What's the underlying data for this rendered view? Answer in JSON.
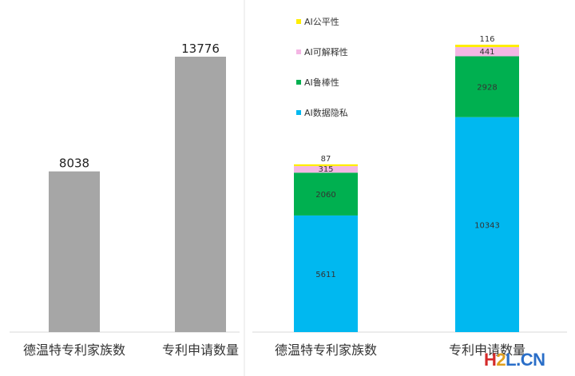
{
  "chart_data": [
    {
      "type": "bar",
      "categories": [
        "德温特专利家族数",
        "专利申请数量"
      ],
      "values": [
        8038,
        13776
      ],
      "color": "#a6a6a6"
    },
    {
      "type": "bar",
      "stacked": true,
      "categories": [
        "德温特专利家族数",
        "专利申请数量"
      ],
      "series": [
        {
          "name": "AI数据隐私",
          "values": [
            5611,
            10343
          ],
          "color": "#00b8f0"
        },
        {
          "name": "AI鲁棒性",
          "values": [
            2060,
            2928
          ],
          "color": "#00b050"
        },
        {
          "name": "AI可解释性",
          "values": [
            315,
            441
          ],
          "color": "#f4b6e4"
        },
        {
          "name": "AI公平性",
          "values": [
            87,
            116
          ],
          "color": "#ffee00"
        }
      ],
      "legend_position": "top-center"
    }
  ],
  "watermark": {
    "part1": "H",
    "part2": "2",
    "part3": "L.CN"
  }
}
